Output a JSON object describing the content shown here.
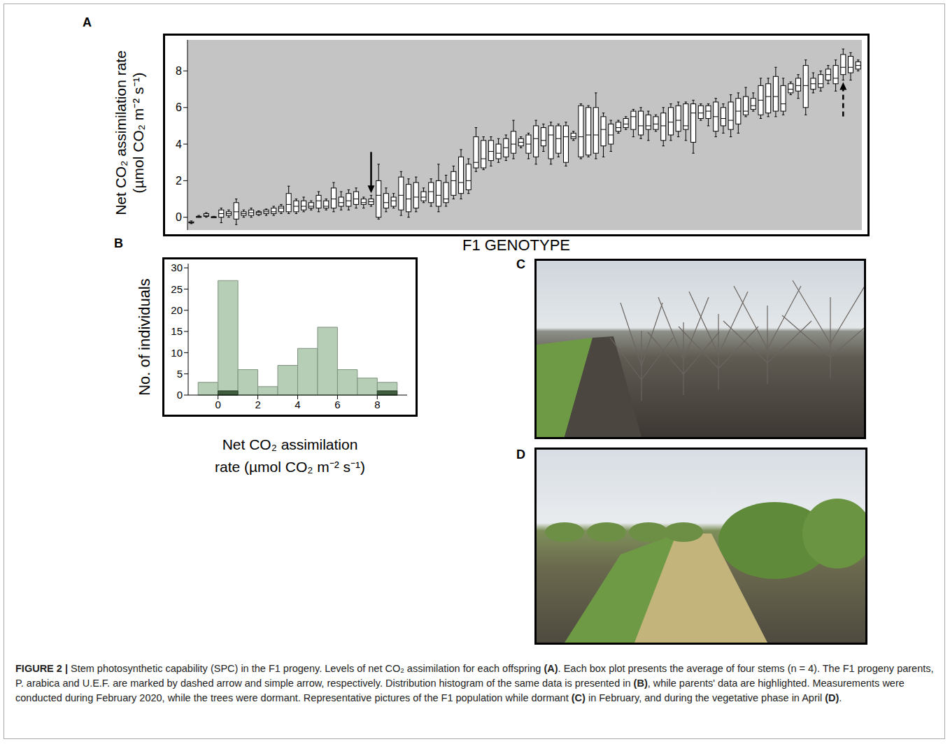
{
  "chart_data": [
    {
      "type": "box",
      "panel": "A",
      "ylabel": [
        "Net CO₂ assimilation rate",
        "(µmol CO₂ m⁻² s⁻¹)"
      ],
      "xlabel": "F1 GENOTYPE",
      "boxes": [
        [
          -0.35,
          -0.3,
          -0.3,
          -0.25,
          -0.2
        ],
        [
          0,
          0,
          0.02,
          0.05,
          0.1
        ],
        [
          0,
          0.05,
          0.1,
          0.2,
          0.25
        ],
        [
          0,
          0,
          0.02,
          0.03,
          0.05
        ],
        [
          -0.3,
          0,
          0.2,
          0.4,
          0.5
        ],
        [
          0,
          0.1,
          0.2,
          0.3,
          0.4
        ],
        [
          -0.4,
          -0.1,
          0.3,
          0.8,
          1.0
        ],
        [
          0,
          0.1,
          0.2,
          0.3,
          0.4
        ],
        [
          0,
          0.1,
          0.25,
          0.4,
          0.5
        ],
        [
          0.1,
          0.15,
          0.25,
          0.3,
          0.35
        ],
        [
          0.1,
          0.2,
          0.3,
          0.4,
          0.45
        ],
        [
          0.1,
          0.2,
          0.3,
          0.5,
          0.6
        ],
        [
          0.2,
          0.3,
          0.5,
          0.6,
          0.7
        ],
        [
          0.2,
          0.3,
          0.7,
          1.3,
          1.7
        ],
        [
          0.2,
          0.3,
          0.6,
          0.9,
          1.0
        ],
        [
          0.3,
          0.4,
          0.6,
          0.9,
          1.1
        ],
        [
          0.4,
          0.5,
          0.6,
          0.8,
          0.9
        ],
        [
          0.3,
          0.5,
          0.9,
          1.2,
          1.4
        ],
        [
          0.4,
          0.5,
          0.6,
          0.9,
          1.0
        ],
        [
          0.3,
          0.5,
          1.0,
          1.6,
          1.9
        ],
        [
          0.4,
          0.6,
          0.8,
          1.1,
          1.4
        ],
        [
          0.4,
          0.6,
          0.9,
          1.3,
          1.5
        ],
        [
          0.5,
          0.7,
          1.0,
          1.4,
          1.6
        ],
        [
          0.5,
          0.7,
          0.8,
          1.0,
          1.1
        ],
        [
          0.6,
          0.7,
          0.85,
          1.0,
          1.2
        ],
        [
          -0.1,
          0.0,
          1.2,
          2.0,
          2.9
        ],
        [
          0.3,
          0.5,
          0.8,
          1.3,
          1.6
        ],
        [
          0.5,
          0.6,
          0.9,
          1.1,
          1.3
        ],
        [
          0.1,
          0.4,
          1.2,
          2.2,
          2.5
        ],
        [
          0,
          0.3,
          1.0,
          1.8,
          2.1
        ],
        [
          0.3,
          0.5,
          1.1,
          1.9,
          2.2
        ],
        [
          0.8,
          0.9,
          1.1,
          1.4,
          1.6
        ],
        [
          0.6,
          0.8,
          1.4,
          1.9,
          2.1
        ],
        [
          0.3,
          0.6,
          1.2,
          2.0,
          2.9
        ],
        [
          0.6,
          0.8,
          1.0,
          1.9,
          2.3
        ],
        [
          1.0,
          1.2,
          2.0,
          2.5,
          2.8
        ],
        [
          1.0,
          1.3,
          1.9,
          3.3,
          3.7
        ],
        [
          1.3,
          1.5,
          2.0,
          2.9,
          3.2
        ],
        [
          2.5,
          2.7,
          3.0,
          4.4,
          4.9
        ],
        [
          2.6,
          2.7,
          3.2,
          4.2,
          4.4
        ],
        [
          2.8,
          3.1,
          3.6,
          4.2,
          4.4
        ],
        [
          3.0,
          3.2,
          3.5,
          4.0,
          4.3
        ],
        [
          3.1,
          3.3,
          3.8,
          4.3,
          4.5
        ],
        [
          3.2,
          3.5,
          4.0,
          4.7,
          5.3
        ],
        [
          3.8,
          3.9,
          4.1,
          4.3,
          4.4
        ],
        [
          3.2,
          3.5,
          4.0,
          4.5,
          4.6
        ],
        [
          2.9,
          3.3,
          4.3,
          5.0,
          5.3
        ],
        [
          3.6,
          3.9,
          4.2,
          4.9,
          5.1
        ],
        [
          2.9,
          3.2,
          4.5,
          5.0,
          5.2
        ],
        [
          3.3,
          3.5,
          4.3,
          5.0,
          5.1
        ],
        [
          2.8,
          3.0,
          4.4,
          5.0,
          5.2
        ],
        [
          4.2,
          4.3,
          4.4,
          4.6,
          4.7
        ],
        [
          3.2,
          3.3,
          4.4,
          6.1,
          6.2
        ],
        [
          3.3,
          3.4,
          4.5,
          6.0,
          6.1
        ],
        [
          3.2,
          3.5,
          4.5,
          6.0,
          6.8
        ],
        [
          3.3,
          3.9,
          4.8,
          5.5,
          5.7
        ],
        [
          3.6,
          4.0,
          4.5,
          5.1,
          5.3
        ],
        [
          4.6,
          4.7,
          4.9,
          5.2,
          5.3
        ],
        [
          4.8,
          4.9,
          5.1,
          5.4,
          5.5
        ],
        [
          4.4,
          4.8,
          5.5,
          5.8,
          5.9
        ],
        [
          4.3,
          4.5,
          5.0,
          5.8,
          6.0
        ],
        [
          4.2,
          4.8,
          5.0,
          5.6,
          5.8
        ],
        [
          4.7,
          4.8,
          5.1,
          5.5,
          5.6
        ],
        [
          3.9,
          4.2,
          5.0,
          5.7,
          6.0
        ],
        [
          4.2,
          4.5,
          5.2,
          6.0,
          6.2
        ],
        [
          4.4,
          4.7,
          5.3,
          6.1,
          6.3
        ],
        [
          4.2,
          4.8,
          5.0,
          6.2,
          6.3
        ],
        [
          3.5,
          4.1,
          5.7,
          6.2,
          6.4
        ],
        [
          5.3,
          5.4,
          5.7,
          6.1,
          6.2
        ],
        [
          5.0,
          5.4,
          5.8,
          6.1,
          6.2
        ],
        [
          4.4,
          4.7,
          5.5,
          6.3,
          6.5
        ],
        [
          4.6,
          5.0,
          5.4,
          6.0,
          6.2
        ],
        [
          4.4,
          4.8,
          5.3,
          6.3,
          6.7
        ],
        [
          4.6,
          5.1,
          5.8,
          6.5,
          6.8
        ],
        [
          5.5,
          5.6,
          5.8,
          6.6,
          7.1
        ],
        [
          5.8,
          5.9,
          6.1,
          6.5,
          6.8
        ],
        [
          5.4,
          5.6,
          6.4,
          7.2,
          7.6
        ],
        [
          5.5,
          5.7,
          6.6,
          7.3,
          7.6
        ],
        [
          5.5,
          5.8,
          6.6,
          7.7,
          8.2
        ],
        [
          5.6,
          5.8,
          6.2,
          7.2,
          7.6
        ],
        [
          6.7,
          6.8,
          7.0,
          7.3,
          7.4
        ],
        [
          6.5,
          6.9,
          7.2,
          7.6,
          7.8
        ],
        [
          5.6,
          6.0,
          7.2,
          8.3,
          8.6
        ],
        [
          6.8,
          7.0,
          7.3,
          7.6,
          7.9
        ],
        [
          6.9,
          7.1,
          7.3,
          7.8,
          8.0
        ],
        [
          7.3,
          7.5,
          7.8,
          8.1,
          8.3
        ],
        [
          6.9,
          7.3,
          7.6,
          8.3,
          8.6
        ],
        [
          7.5,
          7.8,
          8.2,
          8.9,
          9.2
        ],
        [
          7.5,
          7.9,
          8.2,
          8.8,
          9.0
        ],
        [
          8.0,
          8.1,
          8.3,
          8.5,
          8.6
        ]
      ],
      "ylim": [
        -0.7,
        9.7
      ],
      "yticks": [
        0,
        2,
        4,
        6,
        8
      ],
      "tick_labels": "y",
      "grid": false,
      "color": "#c4c4c4",
      "annotations": [
        {
          "index": 24,
          "line_style": "solid"
        },
        {
          "index": 87,
          "line_style": "dashed"
        }
      ]
    },
    {
      "type": "histogram",
      "panel": "B",
      "ylabel": "No. of individuals",
      "xlabel": [
        "Net CO₂ assimilation",
        "rate (µmol CO₂ m⁻² s⁻¹)"
      ],
      "bins": [
        -1,
        0,
        1,
        2,
        3,
        4,
        5,
        6,
        7,
        8,
        9
      ],
      "counts": [
        3,
        27,
        6,
        2,
        7,
        11,
        16,
        6,
        4,
        3
      ],
      "parent_counts": [
        0,
        1,
        0,
        0,
        0,
        0,
        0,
        0,
        0,
        1
      ],
      "color": "#b5ceb5",
      "xlim": [
        -1.5,
        9.5
      ],
      "xticks": [
        0,
        2,
        4,
        6,
        8
      ],
      "ylim": [
        0,
        31
      ],
      "yticks": [
        0,
        5,
        10,
        15,
        20,
        25,
        30
      ],
      "grid": false
    }
  ],
  "photos": [
    {
      "panel": "C"
    },
    {
      "panel": "D"
    }
  ],
  "caption": {
    "label": "FIGURE 2 |",
    "text": "Stem photosynthetic capability (SPC) in the F1 progeny. Levels of net CO₂ assimilation for each offspring (A). Each box plot presents the average of four stems (n = 4). The F1 progeny parents, P. arabica and U.E.F. are marked by dashed arrow and simple arrow, respectively. Distribution histogram of the same data is presented in (B), while parents' data are highlighted. Measurements were conducted during February 2020, while the trees were dormant. Representative pictures of the F1 population while dormant (C) in February, and during the vegetative phase in April (D)."
  }
}
